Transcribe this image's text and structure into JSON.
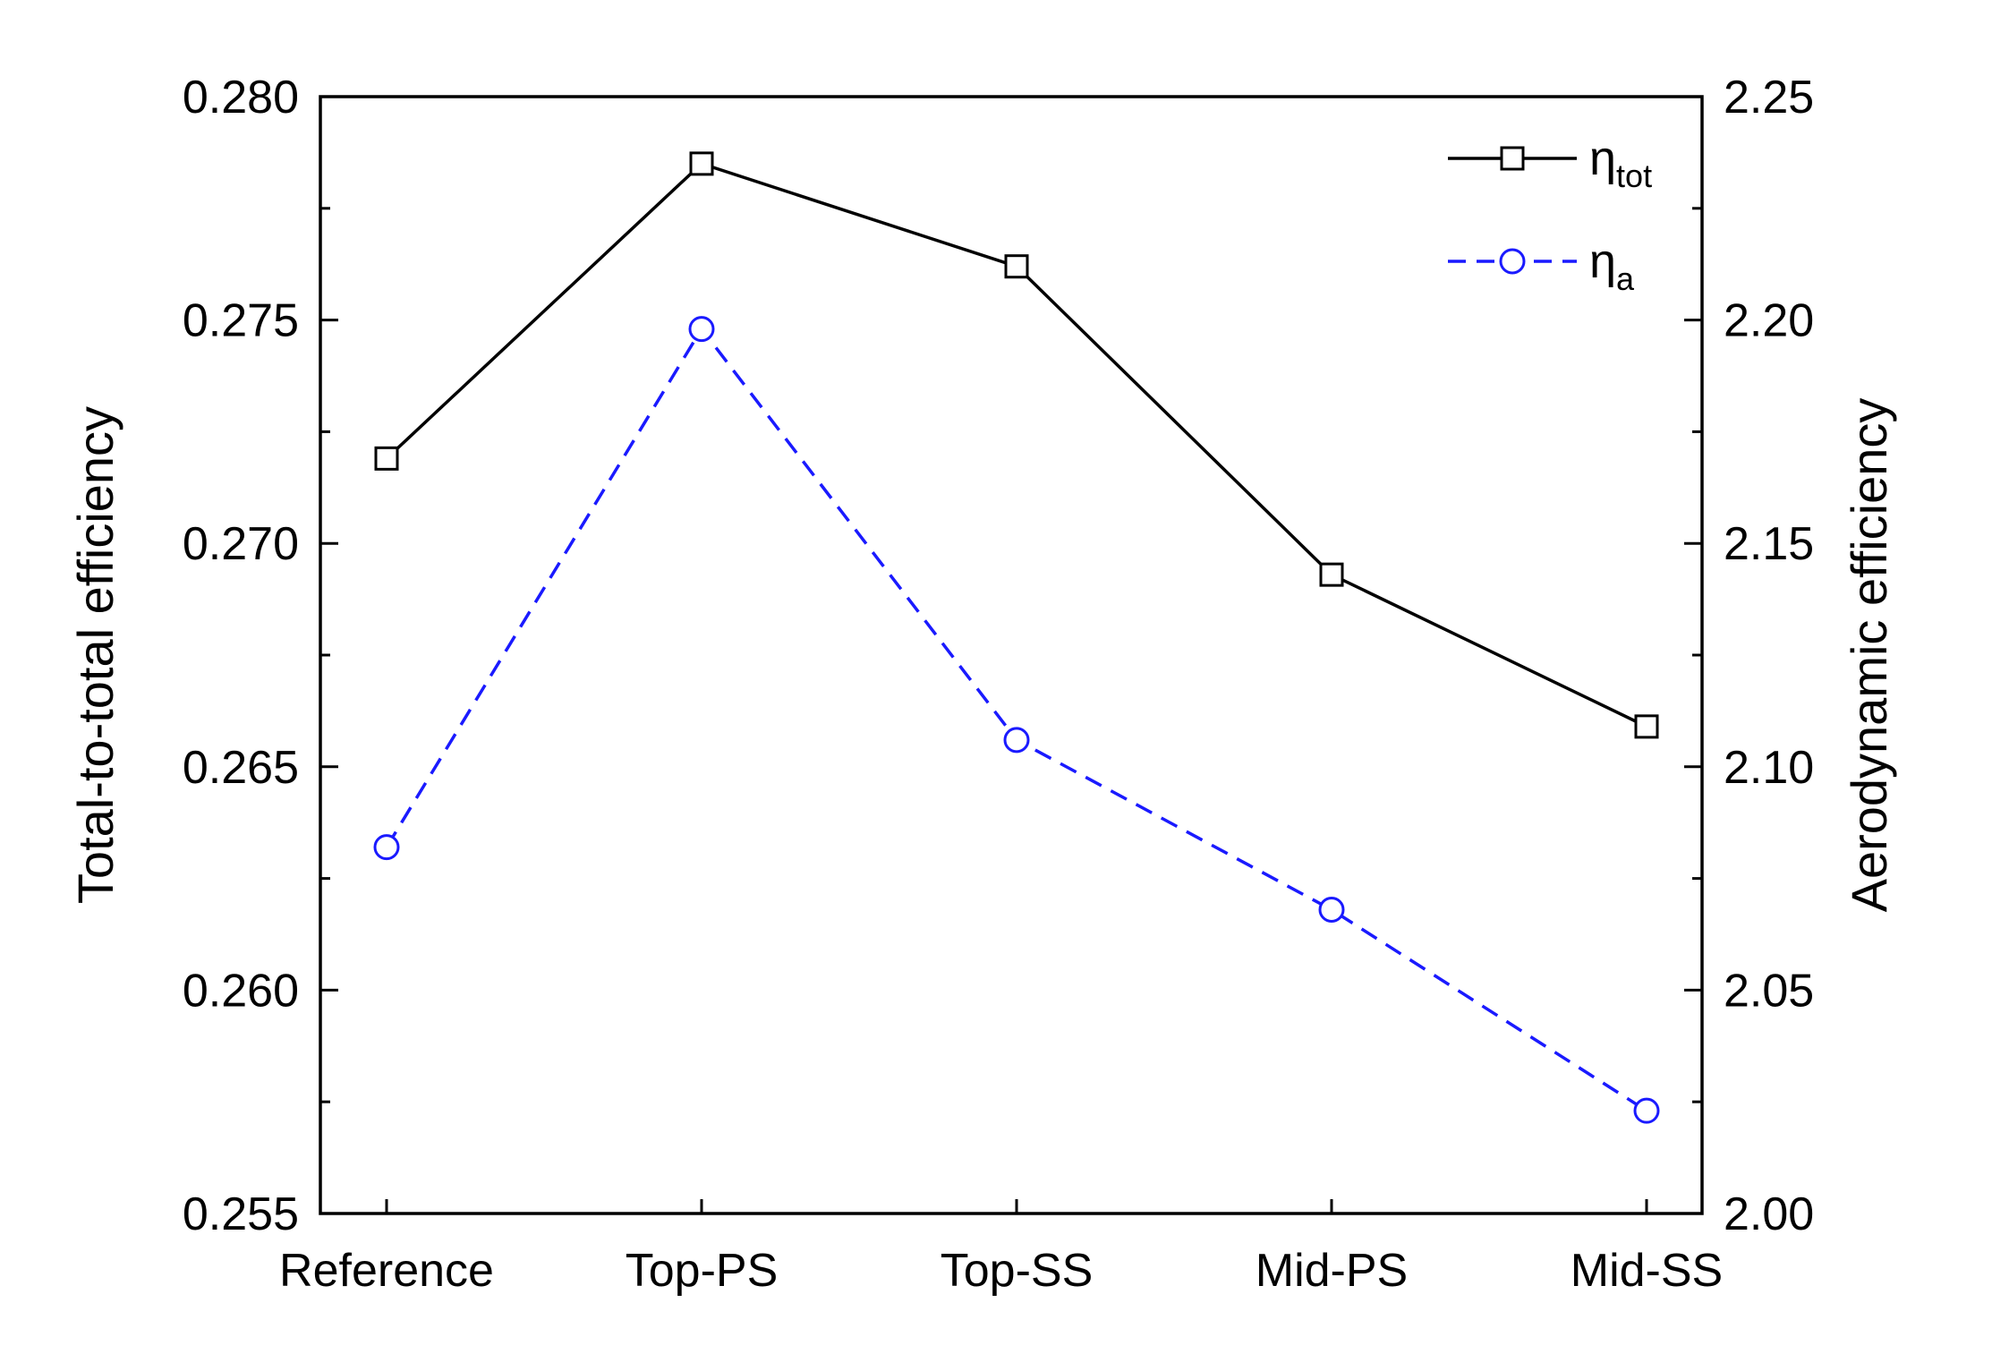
{
  "chart_data": {
    "type": "line",
    "title": "",
    "xlabel": "",
    "ylabel": "Total-to-total efficiency",
    "y2label": "Aerodynamic efficiency",
    "categories": [
      "Reference",
      "Top-PS",
      "Top-SS",
      "Mid-PS",
      "Mid-SS"
    ],
    "ylim": [
      0.255,
      0.28
    ],
    "y2lim": [
      2.0,
      2.25
    ],
    "yticks": [
      "0.255",
      "0.260",
      "0.265",
      "0.270",
      "0.275",
      "0.280"
    ],
    "y2ticks": [
      "2.00",
      "2.05",
      "2.10",
      "2.15",
      "2.20",
      "2.25"
    ],
    "grid": false,
    "legend_position": "top-right",
    "series": [
      {
        "name": "η_tot",
        "symbol": "η",
        "subscript": "tot",
        "axis": "left",
        "marker": "square",
        "line": "solid",
        "color": "#000000",
        "values": [
          0.2719,
          0.2785,
          0.2762,
          0.2693,
          0.2659
        ]
      },
      {
        "name": "η_a",
        "symbol": "η",
        "subscript": "a",
        "axis": "right",
        "marker": "circle",
        "line": "dashed",
        "color": "#1a1aff",
        "values": [
          2.082,
          2.198,
          2.106,
          2.068,
          2.023
        ]
      }
    ]
  }
}
